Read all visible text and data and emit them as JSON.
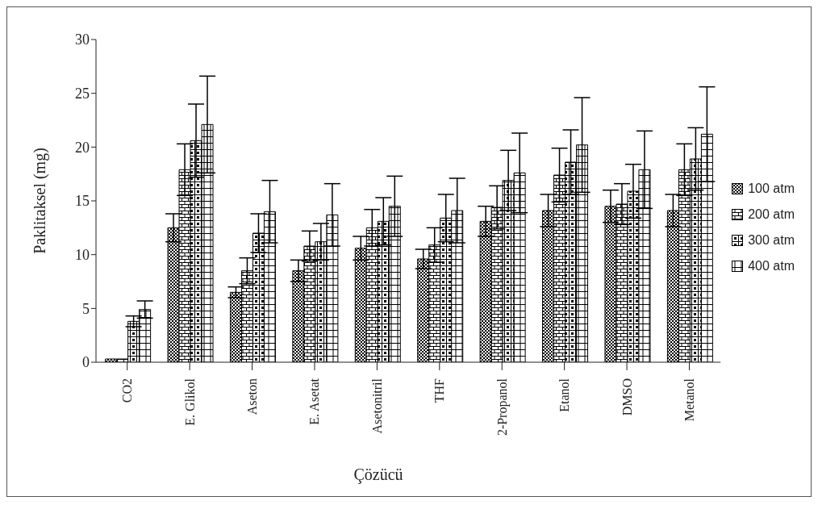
{
  "chart_data": {
    "type": "bar",
    "xlabel": "Çözücü",
    "ylabel": "Paklitaksel (mg)",
    "categories": [
      "CO2",
      "E. Glikol",
      "Aseton",
      "E. Asetat",
      "Asetonitril",
      "THF",
      "2-Propanol",
      "Etanol",
      "DMSO",
      "Metanol"
    ],
    "series": [
      {
        "name": "100 atm",
        "color": "#000000",
        "values": [
          0.3,
          12.5,
          6.5,
          8.5,
          10.6,
          9.6,
          13.1,
          14.1,
          14.5,
          14.1
        ],
        "errors": [
          null,
          1.3,
          0.5,
          1.0,
          1.1,
          0.9,
          1.4,
          1.5,
          1.5,
          1.5
        ]
      },
      {
        "name": "200 atm",
        "color": "#000000",
        "values": [
          0.3,
          17.9,
          8.5,
          10.8,
          12.5,
          10.9,
          14.4,
          17.4,
          14.7,
          17.9
        ],
        "errors": [
          null,
          2.4,
          1.2,
          1.4,
          1.7,
          1.6,
          2.0,
          2.5,
          1.9,
          2.4
        ]
      },
      {
        "name": "300 atm",
        "color": "#000000",
        "values": [
          3.8,
          20.6,
          12.0,
          11.2,
          13.1,
          13.4,
          16.9,
          18.6,
          15.9,
          18.9
        ],
        "errors": [
          0.5,
          3.4,
          1.8,
          1.7,
          2.2,
          2.2,
          2.8,
          3.0,
          2.5,
          2.9
        ]
      },
      {
        "name": "400 atm",
        "color": "#000000",
        "values": [
          4.9,
          22.1,
          14.0,
          13.7,
          14.5,
          14.1,
          17.6,
          20.2,
          17.9,
          21.2
        ],
        "errors": [
          0.8,
          4.5,
          2.9,
          2.9,
          2.8,
          3.0,
          3.7,
          4.4,
          3.6,
          4.4
        ]
      }
    ],
    "ylim": [
      0,
      30
    ],
    "yticks": [
      0,
      5,
      10,
      15,
      20,
      25,
      30
    ],
    "legend": "right"
  }
}
